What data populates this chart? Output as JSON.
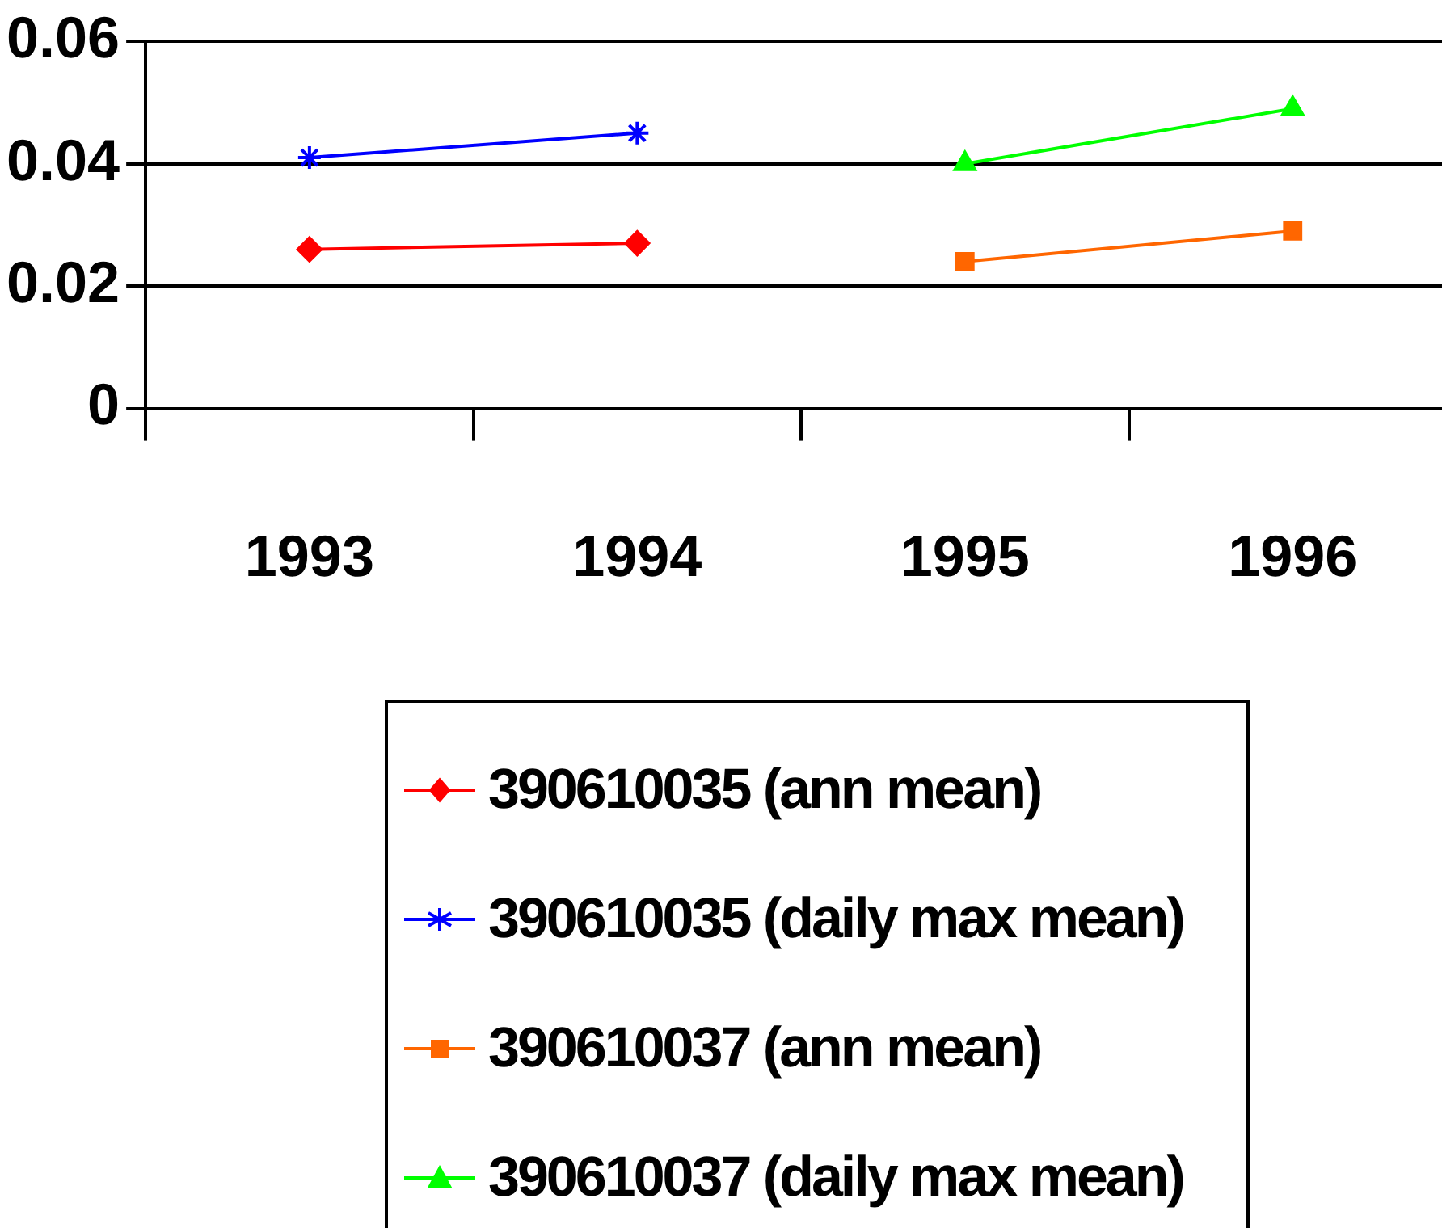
{
  "chart_data": {
    "type": "line",
    "categories": [
      "1993",
      "1994",
      "1995",
      "1996"
    ],
    "series": [
      {
        "name": "390610035 (ann mean)",
        "color": "#ff0000",
        "marker": "diamond",
        "values": [
          0.026,
          0.027,
          null,
          null
        ]
      },
      {
        "name": "390610035 (daily max mean)",
        "color": "#0000ff",
        "marker": "cross",
        "values": [
          0.041,
          0.045,
          null,
          null
        ]
      },
      {
        "name": "390610037 (ann mean)",
        "color": "#ff6600",
        "marker": "square",
        "values": [
          null,
          null,
          0.024,
          0.029
        ]
      },
      {
        "name": "390610037 (daily max mean)",
        "color": "#00ff00",
        "marker": "triangle",
        "values": [
          null,
          null,
          0.04,
          0.049
        ]
      }
    ],
    "ylim": [
      0,
      0.06
    ],
    "yticks": [
      0,
      0.02,
      0.04,
      0.06
    ],
    "grid": "y",
    "legend": "bottom",
    "line_style": "solid"
  }
}
